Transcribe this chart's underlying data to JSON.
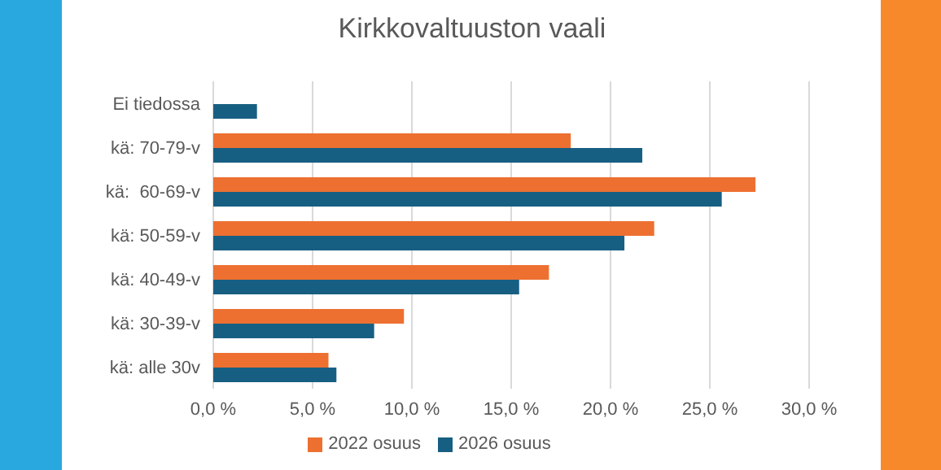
{
  "chart_data": {
    "type": "bar",
    "orientation": "horizontal",
    "title": "Kirkkovaltuuston vaali",
    "categories": [
      "Ei tiedossa",
      "kä: 70-79-v",
      "kä:  60-69-v",
      "kä: 50-59-v",
      "kä: 40-49-v",
      "kä: 30-39-v",
      "kä: alle 30v"
    ],
    "series": [
      {
        "name": "2022 osuus",
        "color": "#ed7031",
        "values": [
          null,
          18.0,
          27.3,
          22.2,
          16.9,
          9.6,
          5.8
        ]
      },
      {
        "name": "2026 osuus",
        "color": "#175f82",
        "values": [
          2.2,
          21.6,
          25.6,
          20.7,
          15.4,
          8.1,
          6.2
        ]
      }
    ],
    "xlim": [
      0,
      30
    ],
    "xticks": [
      {
        "value": 0,
        "label": "0,0 %"
      },
      {
        "value": 5,
        "label": "5,0 %"
      },
      {
        "value": 10,
        "label": "10,0 %"
      },
      {
        "value": 15,
        "label": "15,0 %"
      },
      {
        "value": 20,
        "label": "20,0 %"
      },
      {
        "value": 25,
        "label": "25,0 %"
      },
      {
        "value": 30,
        "label": "30,0 %"
      }
    ],
    "grid": "x",
    "legend": "bottom"
  }
}
